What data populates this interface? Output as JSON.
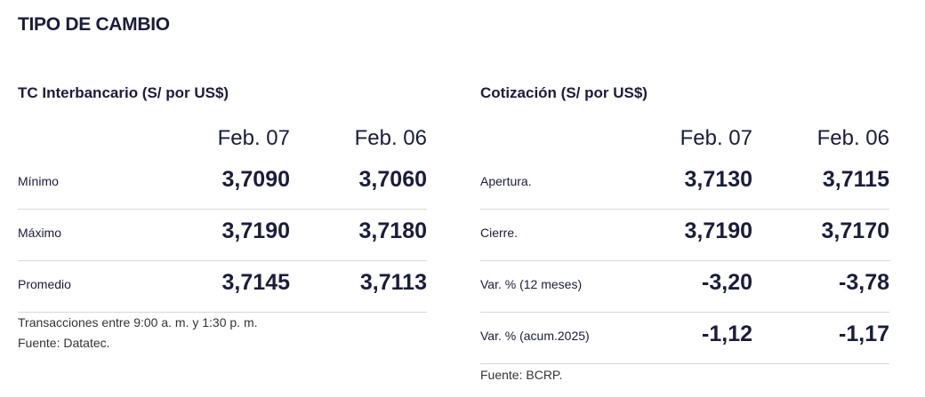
{
  "title": "TIPO DE CAMBIO",
  "interbancario": {
    "title": "TC Interbancario (S/ por US$)",
    "columns": [
      "Feb. 07",
      "Feb. 06"
    ],
    "rows": [
      {
        "label": "Mínimo",
        "v1": "3,7090",
        "v2": "3,7060"
      },
      {
        "label": "Máximo",
        "v1": "3,7190",
        "v2": "3,7180"
      },
      {
        "label": "Promedio",
        "v1": "3,7145",
        "v2": "3,7113"
      }
    ],
    "notes": [
      "Transacciones entre 9:00 a. m. y 1:30 p. m.",
      "Fuente: Datatec."
    ]
  },
  "cotizacion": {
    "title": "Cotización (S/ por US$)",
    "columns": [
      "Feb. 07",
      "Feb. 06"
    ],
    "rows": [
      {
        "label": "Apertura.",
        "v1": "3,7130",
        "v2": "3,7115"
      },
      {
        "label": "Cierre.",
        "v1": "3,7190",
        "v2": "3,7170"
      },
      {
        "label": "Var. % (12 meses)",
        "v1": "-3,20",
        "v2": "-3,78"
      },
      {
        "label": "Var. % (acum.2025)",
        "v1": "-1,12",
        "v2": "-1,17"
      }
    ],
    "notes": [
      "Fuente: BCRP."
    ]
  }
}
